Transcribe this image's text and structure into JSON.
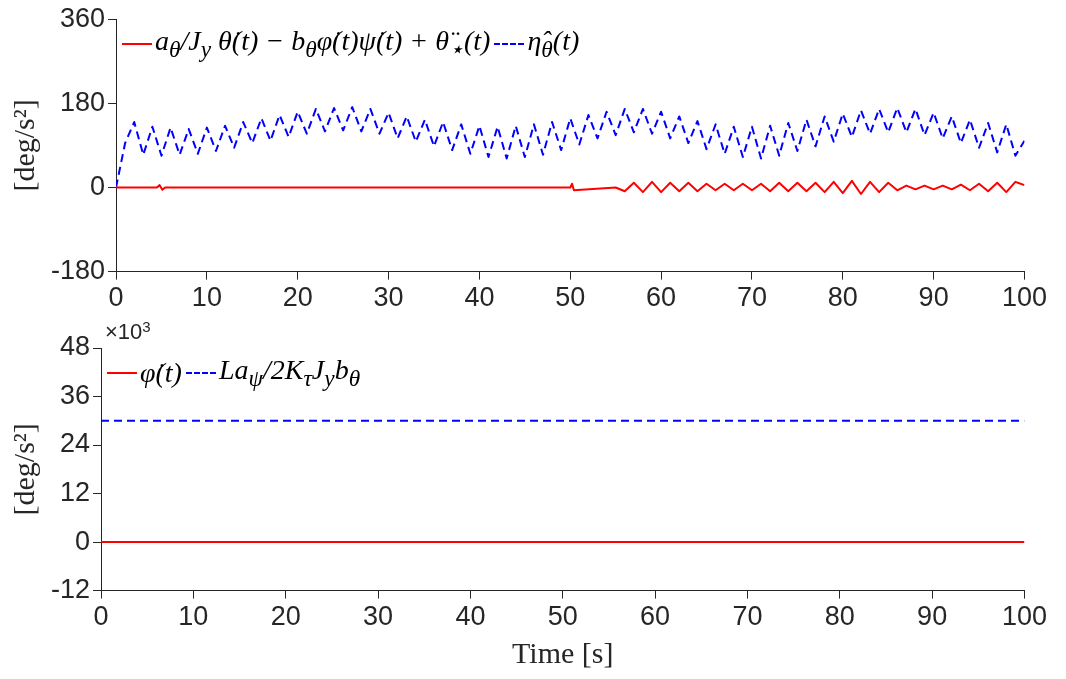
{
  "chart_data": [
    {
      "type": "line",
      "ylabel": "[deg/s²]",
      "xlim": [
        0,
        100
      ],
      "xticks": [
        0,
        10,
        20,
        30,
        40,
        50,
        60,
        70,
        80,
        90,
        100
      ],
      "ylim": [
        -180,
        360
      ],
      "yticks": [
        -180,
        0,
        180,
        360
      ],
      "grid": false,
      "legend": "top left",
      "marker": "none",
      "series": [
        {
          "name": "a$_{θ}$/J$_{y}$ θ̇(t) − b$_{θ}$φ̇(t)ψ̇(t) + θ̈$_{⋆}$(t)",
          "color": "#ff0000",
          "line_style": "solid",
          "x": [
            0,
            4.5,
            4.8,
            5.1,
            5.4,
            50,
            50.2,
            50.4,
            55,
            56,
            57,
            58,
            59,
            60,
            61,
            62,
            63,
            64,
            65,
            66,
            67,
            68,
            69,
            70,
            71,
            72,
            73,
            74,
            75,
            76,
            77,
            78,
            79,
            80,
            81,
            82,
            83,
            84,
            85,
            86,
            87,
            88,
            89,
            90,
            91,
            92,
            93,
            94,
            95,
            96,
            97,
            98,
            99,
            100
          ],
          "values": [
            0,
            0,
            5,
            -5,
            0,
            0,
            8,
            -6,
            0,
            -8,
            10,
            -10,
            12,
            -10,
            10,
            -8,
            10,
            -8,
            8,
            -6,
            8,
            -6,
            8,
            -6,
            8,
            -8,
            10,
            -8,
            10,
            -8,
            10,
            -10,
            12,
            -12,
            14,
            -14,
            12,
            -10,
            10,
            -6,
            4,
            -4,
            4,
            -4,
            4,
            -4,
            6,
            -6,
            8,
            -8,
            10,
            -10,
            12,
            5
          ]
        },
        {
          "name": "η̂$_{θ}$(t)",
          "color": "#0000ff",
          "line_style": "dashed",
          "x": [
            0,
            1,
            2,
            3,
            4,
            5,
            6,
            7,
            8,
            9,
            10,
            11,
            12,
            13,
            14,
            15,
            16,
            17,
            18,
            19,
            20,
            21,
            22,
            23,
            24,
            25,
            26,
            27,
            28,
            29,
            30,
            31,
            32,
            33,
            34,
            35,
            36,
            37,
            38,
            39,
            40,
            41,
            42,
            43,
            44,
            45,
            46,
            47,
            48,
            49,
            50,
            51,
            52,
            53,
            54,
            55,
            56,
            57,
            58,
            59,
            60,
            61,
            62,
            63,
            64,
            65,
            66,
            67,
            68,
            69,
            70,
            71,
            72,
            73,
            74,
            75,
            76,
            77,
            78,
            79,
            80,
            81,
            82,
            83,
            84,
            85,
            86,
            87,
            88,
            89,
            90,
            91,
            92,
            93,
            94,
            95,
            96,
            97,
            98,
            99,
            100
          ],
          "values": [
            0,
            95,
            140,
            70,
            130,
            68,
            128,
            70,
            125,
            72,
            128,
            78,
            132,
            85,
            140,
            95,
            148,
            100,
            155,
            108,
            162,
            115,
            168,
            120,
            170,
            122,
            172,
            120,
            168,
            115,
            160,
            105,
            152,
            98,
            145,
            88,
            140,
            80,
            135,
            72,
            132,
            65,
            130,
            62,
            132,
            65,
            135,
            70,
            140,
            80,
            148,
            92,
            155,
            105,
            162,
            112,
            168,
            118,
            168,
            115,
            162,
            105,
            152,
            95,
            142,
            82,
            135,
            72,
            130,
            65,
            130,
            62,
            132,
            68,
            138,
            78,
            145,
            88,
            152,
            98,
            158,
            108,
            165,
            115,
            168,
            118,
            170,
            118,
            168,
            112,
            160,
            105,
            152,
            95,
            145,
            85,
            138,
            75,
            135,
            68,
            100
          ]
        }
      ]
    },
    {
      "type": "line",
      "xlabel": "Time [s]",
      "ylabel": "[deg/s²]",
      "annotations": [
        "×10$^{3}$"
      ],
      "xlim": [
        0,
        100
      ],
      "xticks": [
        0,
        10,
        20,
        30,
        40,
        50,
        60,
        70,
        80,
        90,
        100
      ],
      "ylim": [
        -12,
        48
      ],
      "yticks": [
        -12,
        0,
        12,
        24,
        36,
        48
      ],
      "grid": false,
      "legend": "top left",
      "marker": "none",
      "series": [
        {
          "name": "φ̇(t)",
          "color": "#ff0000",
          "line_style": "solid",
          "x": [
            0,
            100
          ],
          "values": [
            0,
            0
          ]
        },
        {
          "name": "La$_{ψ}$/2K$_{τ}$J$_{y}$b$_{θ}$",
          "color": "#0000ff",
          "line_style": "dashed",
          "x": [
            0,
            100
          ],
          "values": [
            30,
            30
          ]
        }
      ]
    }
  ]
}
